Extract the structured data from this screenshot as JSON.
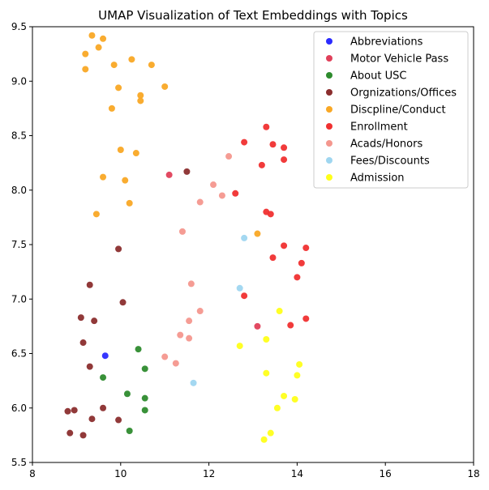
{
  "chart_data": {
    "type": "scatter",
    "title": "UMAP Visualization of Text Embeddings with Topics",
    "xlabel": "",
    "ylabel": "",
    "xlim": [
      8,
      18
    ],
    "ylim": [
      5.5,
      9.5
    ],
    "xticks": [
      "8",
      "10",
      "12",
      "14",
      "16",
      "18"
    ],
    "yticks": [
      "5.5",
      "6.0",
      "6.5",
      "7.0",
      "7.5",
      "8.0",
      "8.5",
      "9.0",
      "9.5"
    ],
    "grid": false,
    "legend_position": "top-right",
    "series": [
      {
        "name": "Abbreviations",
        "color": "#2b2bff",
        "points": [
          [
            9.65,
            6.48
          ]
        ]
      },
      {
        "name": "Motor Vehicle Pass",
        "color": "#e0405a",
        "points": [
          [
            11.1,
            8.14
          ],
          [
            13.1,
            6.75
          ]
        ]
      },
      {
        "name": "About USC",
        "color": "#2e8b2e",
        "points": [
          [
            10.4,
            6.54
          ],
          [
            10.55,
            6.36
          ],
          [
            9.6,
            6.28
          ],
          [
            10.15,
            6.13
          ],
          [
            10.55,
            6.09
          ],
          [
            10.55,
            5.98
          ],
          [
            10.2,
            5.79
          ]
        ]
      },
      {
        "name": "Orgnizations/Offices",
        "color": "#8b2e2e",
        "points": [
          [
            11.5,
            8.17
          ],
          [
            9.95,
            7.46
          ],
          [
            9.3,
            7.13
          ],
          [
            10.05,
            6.97
          ],
          [
            9.1,
            6.83
          ],
          [
            9.4,
            6.8
          ],
          [
            9.15,
            6.6
          ],
          [
            9.3,
            6.38
          ],
          [
            9.6,
            6.0
          ],
          [
            8.8,
            5.97
          ],
          [
            8.95,
            5.98
          ],
          [
            9.35,
            5.9
          ],
          [
            9.95,
            5.89
          ],
          [
            8.85,
            5.77
          ],
          [
            9.15,
            5.75
          ]
        ]
      },
      {
        "name": "Discpline/Conduct",
        "color": "#f9a825",
        "points": [
          [
            9.35,
            9.42
          ],
          [
            9.6,
            9.39
          ],
          [
            9.5,
            9.31
          ],
          [
            9.2,
            9.25
          ],
          [
            10.25,
            9.2
          ],
          [
            9.85,
            9.15
          ],
          [
            10.7,
            9.15
          ],
          [
            9.2,
            9.11
          ],
          [
            9.95,
            8.94
          ],
          [
            11.0,
            8.95
          ],
          [
            10.45,
            8.87
          ],
          [
            10.45,
            8.82
          ],
          [
            9.8,
            8.75
          ],
          [
            10.0,
            8.37
          ],
          [
            10.35,
            8.34
          ],
          [
            9.6,
            8.12
          ],
          [
            10.1,
            8.09
          ],
          [
            10.2,
            7.88
          ],
          [
            9.45,
            7.78
          ],
          [
            13.1,
            7.6
          ]
        ]
      },
      {
        "name": "Enrollment",
        "color": "#f03030",
        "points": [
          [
            13.3,
            8.58
          ],
          [
            12.8,
            8.44
          ],
          [
            13.45,
            8.42
          ],
          [
            13.7,
            8.39
          ],
          [
            13.7,
            8.28
          ],
          [
            13.2,
            8.23
          ],
          [
            12.6,
            7.97
          ],
          [
            13.3,
            7.8
          ],
          [
            13.4,
            7.78
          ],
          [
            13.7,
            7.49
          ],
          [
            14.2,
            7.47
          ],
          [
            13.45,
            7.38
          ],
          [
            14.1,
            7.33
          ],
          [
            14.0,
            7.2
          ],
          [
            12.8,
            7.03
          ],
          [
            14.2,
            6.82
          ],
          [
            13.85,
            6.76
          ]
        ]
      },
      {
        "name": "Acads/Honors",
        "color": "#f4978e",
        "points": [
          [
            12.45,
            8.31
          ],
          [
            12.1,
            8.05
          ],
          [
            12.3,
            7.95
          ],
          [
            11.8,
            7.89
          ],
          [
            11.4,
            7.62
          ],
          [
            11.6,
            7.14
          ],
          [
            11.8,
            6.89
          ],
          [
            11.55,
            6.8
          ],
          [
            11.35,
            6.67
          ],
          [
            11.55,
            6.64
          ],
          [
            11.0,
            6.47
          ],
          [
            11.25,
            6.41
          ]
        ]
      },
      {
        "name": "Fees/Discounts",
        "color": "#9fd6f0",
        "points": [
          [
            12.8,
            7.56
          ],
          [
            12.7,
            7.1
          ],
          [
            11.65,
            6.23
          ]
        ]
      },
      {
        "name": "Admission",
        "color": "#ffff1a",
        "points": [
          [
            13.6,
            6.89
          ],
          [
            12.7,
            6.57
          ],
          [
            13.3,
            6.63
          ],
          [
            14.05,
            6.4
          ],
          [
            13.3,
            6.32
          ],
          [
            14.0,
            6.3
          ],
          [
            13.7,
            6.11
          ],
          [
            13.95,
            6.08
          ],
          [
            13.55,
            6.0
          ],
          [
            13.4,
            5.77
          ],
          [
            13.25,
            5.71
          ]
        ]
      }
    ]
  }
}
